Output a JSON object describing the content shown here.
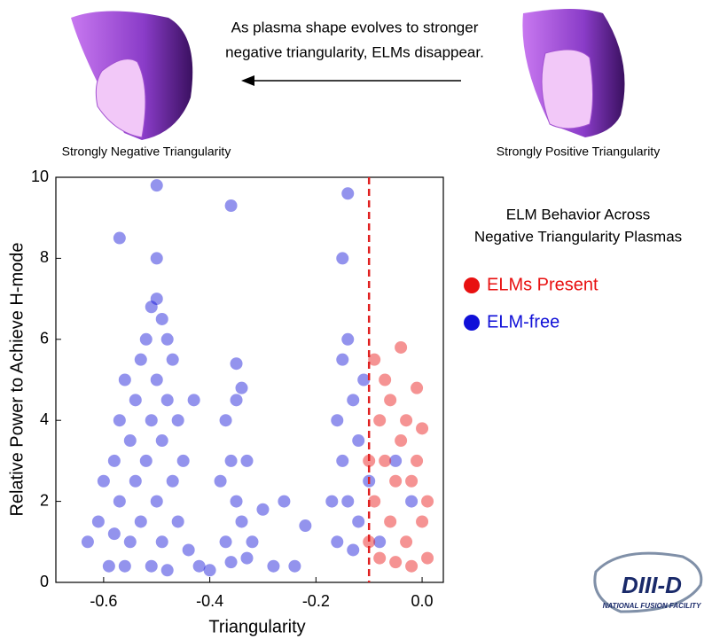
{
  "header": {
    "annotation": [
      "As plasma shape evolves to stronger",
      "negative triangularity, ELMs disappear."
    ],
    "left_label": "Strongly Negative Triangularity",
    "right_label": "Strongly Positive Triangularity"
  },
  "logo": {
    "name": "DIII-D",
    "subtitle": "NATIONAL FUSION FACILITY"
  },
  "chart_data": {
    "type": "scatter",
    "xlabel": "Triangularity",
    "ylabel": "Relative Power to Achieve H-mode",
    "legend_title": [
      "ELM Behavior Across",
      "Negative Triangularity Plasmas"
    ],
    "xlim": [
      -0.69,
      0.04
    ],
    "ylim": [
      0,
      10
    ],
    "xticks": [
      -0.6,
      -0.4,
      -0.2,
      {
        "value": 0,
        "label": "0.0"
      }
    ],
    "yticks": [
      0,
      2,
      4,
      6,
      8,
      10
    ],
    "vline": -0.1,
    "vline_color": "#e02020",
    "series": [
      {
        "name": "ELM-free",
        "color": "#1010d8",
        "x": [
          -0.63,
          -0.61,
          -0.6,
          -0.59,
          -0.58,
          -0.58,
          -0.57,
          -0.57,
          -0.56,
          -0.56,
          -0.55,
          -0.55,
          -0.54,
          -0.54,
          -0.53,
          -0.53,
          -0.52,
          -0.52,
          -0.51,
          -0.51,
          -0.51,
          -0.5,
          -0.5,
          -0.5,
          -0.49,
          -0.49,
          -0.49,
          -0.48,
          -0.48,
          -0.48,
          -0.47,
          -0.47,
          -0.46,
          -0.46,
          -0.5,
          -0.5,
          -0.57,
          -0.45,
          -0.44,
          -0.43,
          -0.42,
          -0.4,
          -0.38,
          -0.37,
          -0.37,
          -0.36,
          -0.36,
          -0.35,
          -0.35,
          -0.34,
          -0.34,
          -0.33,
          -0.33,
          -0.32,
          -0.35,
          -0.36,
          -0.3,
          -0.28,
          -0.26,
          -0.24,
          -0.22,
          -0.17,
          -0.16,
          -0.16,
          -0.15,
          -0.15,
          -0.14,
          -0.14,
          -0.13,
          -0.13,
          -0.12,
          -0.12,
          -0.11,
          -0.15,
          -0.14,
          -0.1,
          -0.08,
          -0.05,
          -0.02
        ],
        "values": [
          1.0,
          1.5,
          2.5,
          0.4,
          3.0,
          1.2,
          4.0,
          2.0,
          5.0,
          0.4,
          3.5,
          1.0,
          4.5,
          2.5,
          5.5,
          1.5,
          6.0,
          3.0,
          6.8,
          4.0,
          0.4,
          7.0,
          5.0,
          2.0,
          6.5,
          3.5,
          1.0,
          6.0,
          4.5,
          0.3,
          5.5,
          2.5,
          4.0,
          1.5,
          8.0,
          9.8,
          8.5,
          3.0,
          0.8,
          4.5,
          0.4,
          0.3,
          2.5,
          4.0,
          1.0,
          3.0,
          0.5,
          4.5,
          2.0,
          4.8,
          1.5,
          3.0,
          0.6,
          1.0,
          5.4,
          9.3,
          1.8,
          0.4,
          2.0,
          0.4,
          1.4,
          2.0,
          4.0,
          1.0,
          5.5,
          3.0,
          6.0,
          2.0,
          4.5,
          0.8,
          3.5,
          1.5,
          5.0,
          8.0,
          9.6,
          2.5,
          1.0,
          3.0,
          2.0
        ]
      },
      {
        "name": "ELMs Present",
        "color": "#e81010",
        "x": [
          -0.1,
          -0.1,
          -0.09,
          -0.09,
          -0.08,
          -0.08,
          -0.07,
          -0.07,
          -0.06,
          -0.06,
          -0.05,
          -0.05,
          -0.04,
          -0.04,
          -0.03,
          -0.03,
          -0.02,
          -0.02,
          -0.01,
          -0.01,
          0.0,
          0.0,
          0.01,
          0.01
        ],
        "values": [
          1.0,
          3.0,
          5.5,
          2.0,
          4.0,
          0.6,
          3.0,
          5.0,
          1.5,
          4.5,
          2.5,
          0.5,
          3.5,
          5.8,
          1.0,
          4.0,
          2.5,
          0.4,
          3.0,
          4.8,
          1.5,
          3.8,
          2.0,
          0.6
        ]
      }
    ]
  }
}
